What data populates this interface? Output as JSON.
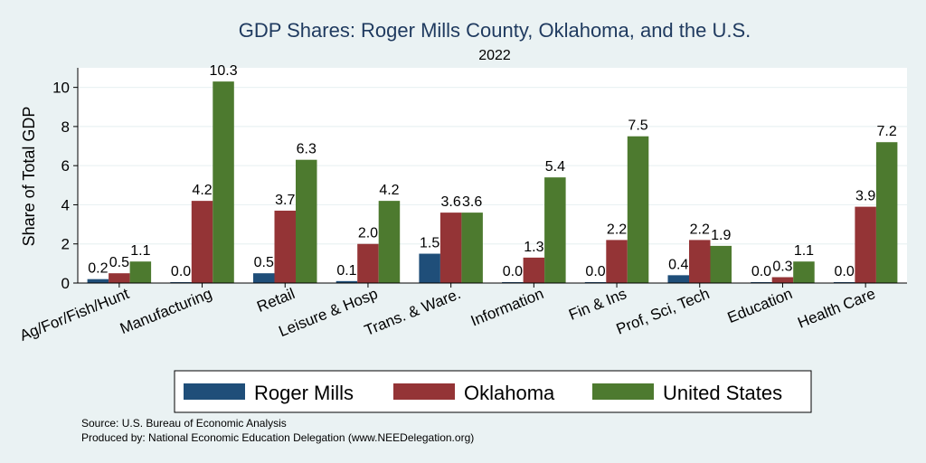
{
  "chart_data": {
    "type": "bar",
    "title": "GDP Shares: Roger Mills County, Oklahoma, and the U.S.",
    "subtitle": "2022",
    "xlabel": "",
    "ylabel": "Share of Total GDP",
    "ylim": [
      0,
      11
    ],
    "yticks": [
      0,
      2,
      4,
      6,
      8,
      10
    ],
    "categories": [
      "Ag/For/Fish/Hunt",
      "Manufacturing",
      "Retail",
      "Leisure & Hosp",
      "Trans. & Ware.",
      "Information",
      "Fin & Ins",
      "Prof, Sci, Tech",
      "Education",
      "Health Care"
    ],
    "series": [
      {
        "name": "Roger Mills",
        "color": "#1f4e79",
        "values": [
          0.2,
          0.0,
          0.5,
          0.1,
          1.5,
          0.0,
          0.0,
          0.4,
          0.0,
          0.0
        ],
        "labels": [
          "0.2",
          "0.0",
          "0.5",
          "0.1",
          "1.5",
          "0.0",
          "0.0",
          "0.4",
          "0.0",
          "0.0"
        ]
      },
      {
        "name": "Oklahoma",
        "color": "#943436",
        "values": [
          0.5,
          4.2,
          3.7,
          2.0,
          3.6,
          1.3,
          2.2,
          2.2,
          0.3,
          3.9
        ],
        "labels": [
          "0.5",
          "4.2",
          "3.7",
          "2.0",
          "3.6",
          "1.3",
          "2.2",
          "2.2",
          "0.3",
          "3.9"
        ]
      },
      {
        "name": "United States",
        "color": "#4d7a2f",
        "values": [
          1.1,
          10.3,
          6.3,
          4.2,
          3.6,
          5.4,
          7.5,
          1.9,
          1.1,
          7.2
        ],
        "labels": [
          "1.1",
          "10.3",
          "6.3",
          "4.2",
          "3.6",
          "5.4",
          "7.5",
          "1.9",
          "1.1",
          "7.2"
        ]
      }
    ],
    "legend": [
      "Roger Mills",
      "Oklahoma",
      "United States"
    ],
    "legend_position": "bottom",
    "grid": true
  },
  "footnotes": {
    "source": "Source: U.S. Bureau of Economic Analysis",
    "produced": "Produced by: National Economic Education Delegation (www.NEEDelegation.org)"
  }
}
